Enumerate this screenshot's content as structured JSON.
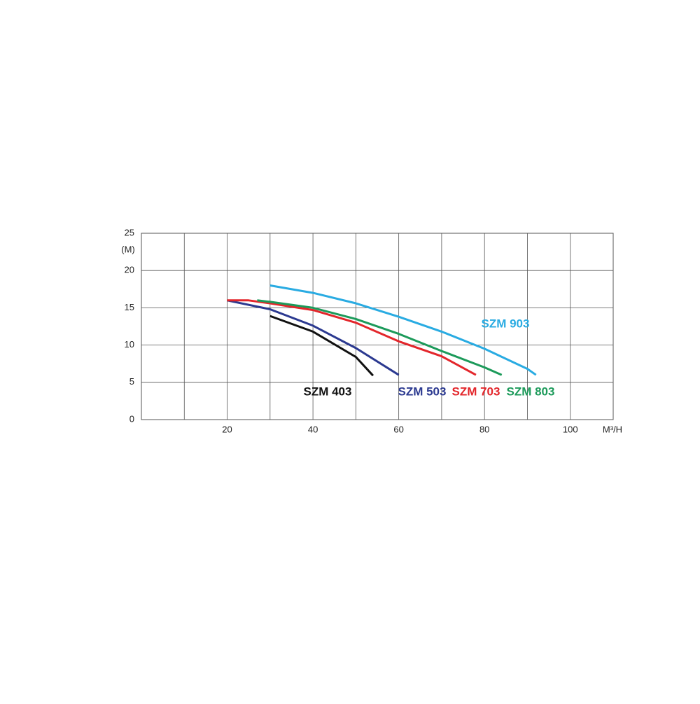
{
  "chart_data": {
    "type": "line",
    "y_label": "(M)",
    "x_label": "M³/H",
    "xlim": [
      0,
      110
    ],
    "xticks": [
      20,
      40,
      60,
      80,
      100
    ],
    "minor_xticks": [
      10,
      30,
      50,
      70,
      90
    ],
    "ylim": [
      0,
      25
    ],
    "yticks": [
      0,
      5,
      10,
      15,
      20,
      25
    ],
    "grid": true,
    "series": [
      {
        "name": "SZM 403",
        "color": "#111111",
        "x": [
          30,
          40,
          50,
          54
        ],
        "values": [
          13.9,
          11.8,
          8.4,
          5.9
        ]
      },
      {
        "name": "SZM 503",
        "color": "#2b3990",
        "x": [
          20,
          30,
          40,
          50,
          60
        ],
        "values": [
          16,
          14.8,
          12.6,
          9.6,
          6
        ]
      },
      {
        "name": "SZM 703",
        "color": "#e3262b",
        "x": [
          20,
          25,
          30,
          40,
          50,
          60,
          70,
          78
        ],
        "values": [
          16,
          16,
          15.6,
          14.7,
          13,
          10.5,
          8.5,
          6
        ]
      },
      {
        "name": "SZM 803",
        "color": "#1c9a5a",
        "x": [
          27,
          30,
          40,
          50,
          60,
          70,
          80,
          84
        ],
        "values": [
          16,
          15.8,
          15,
          13.5,
          11.5,
          9.2,
          7,
          6
        ]
      },
      {
        "name": "SZM 903",
        "color": "#29abe2",
        "x": [
          30,
          40,
          50,
          60,
          70,
          80,
          90,
          92
        ],
        "values": [
          18,
          17,
          15.6,
          13.8,
          11.8,
          9.5,
          6.8,
          6
        ]
      }
    ]
  }
}
